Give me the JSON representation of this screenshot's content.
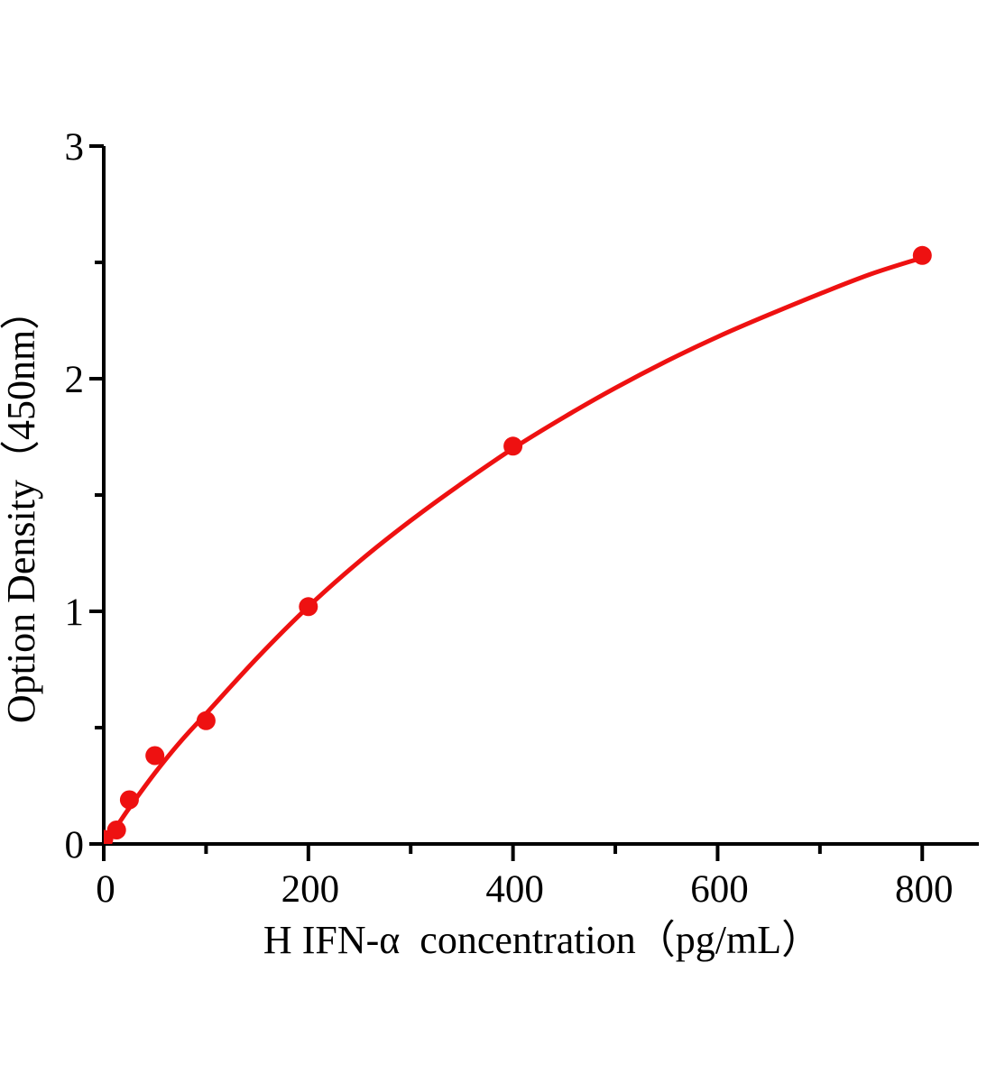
{
  "figure": {
    "background": "#ffffff"
  },
  "chart_data": {
    "type": "scatter",
    "title": "",
    "xlabel": "H IFN-α  concentration（pg/mL）",
    "ylabel": "Option Density（450nm）",
    "xlim": [
      0,
      855
    ],
    "ylim": [
      0,
      3
    ],
    "xticks": {
      "major": [
        0,
        200,
        400,
        600,
        800
      ],
      "minor": [
        100,
        300,
        500,
        700
      ]
    },
    "yticks": {
      "major": [
        0,
        1,
        2,
        3
      ],
      "minor": [
        0.5,
        1.5,
        2.5
      ]
    },
    "grid": "off",
    "legend": "none",
    "marker": "filled-circle",
    "colors": {
      "series": "#ee1111",
      "axis": "#000000",
      "text": "#000000"
    },
    "points": {
      "x": [
        0,
        12.5,
        25,
        50,
        100,
        200,
        400,
        800
      ],
      "y": [
        0.02,
        0.06,
        0.19,
        0.38,
        0.53,
        1.02,
        1.71,
        2.53
      ]
    },
    "fit_curve": {
      "x": [
        0,
        12.5,
        25,
        50,
        75,
        100,
        150,
        200,
        250,
        300,
        350,
        400,
        450,
        500,
        550,
        600,
        650,
        700,
        750,
        800
      ],
      "y": [
        0,
        0.075,
        0.155,
        0.305,
        0.44,
        0.56,
        0.8,
        1.02,
        1.215,
        1.39,
        1.55,
        1.7,
        1.835,
        1.96,
        2.075,
        2.18,
        2.275,
        2.365,
        2.45,
        2.52
      ]
    }
  }
}
